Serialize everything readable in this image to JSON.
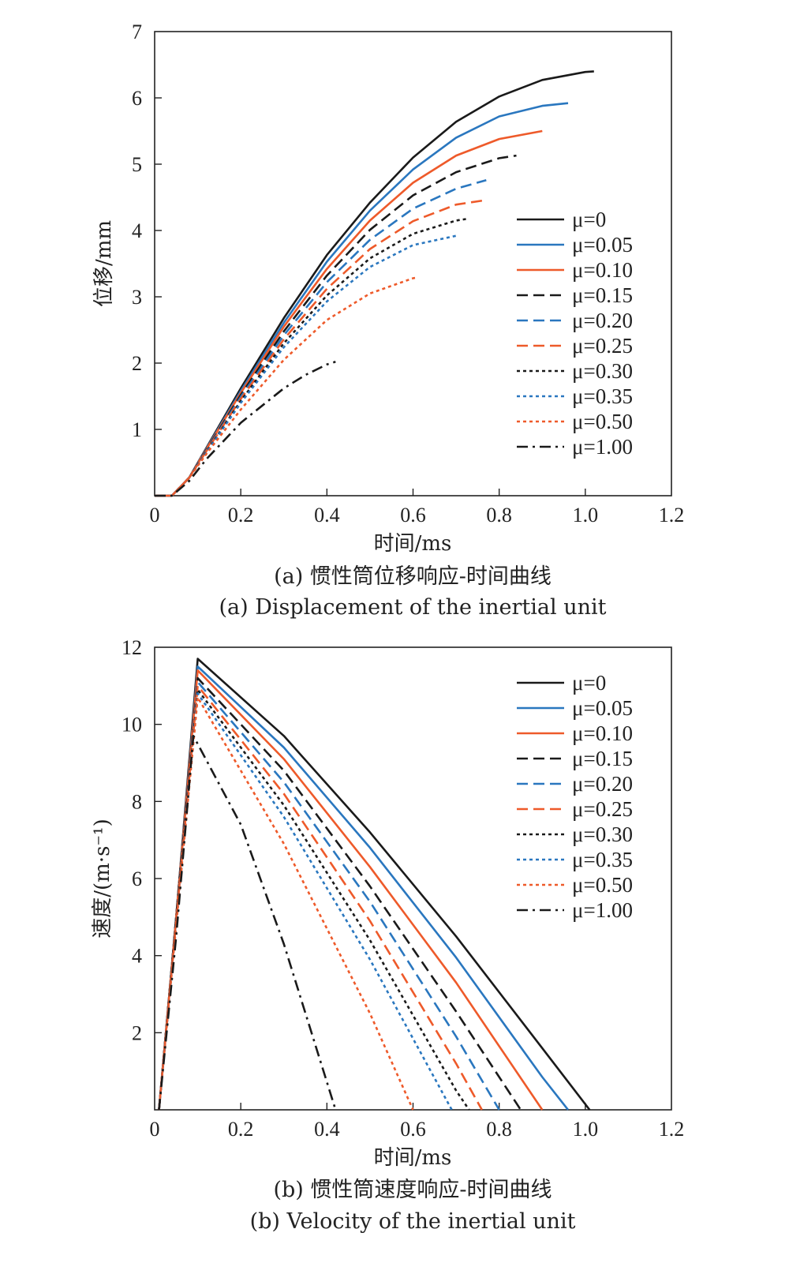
{
  "colors": {
    "black": "#1a1a1a",
    "blue": "#2a77bf",
    "orange": "#ee5a2a"
  },
  "chart_data": [
    {
      "type": "line",
      "title": "",
      "caption_cn": "(a) 惯性筒位移响应-时间曲线",
      "caption_en": "(a) Displacement of the inertial unit",
      "xlabel": "时间/ms",
      "ylabel": "位移/mm",
      "xlim": [
        0,
        1.2
      ],
      "ylim": [
        0,
        7
      ],
      "xticks": [
        "0",
        "0.2",
        "0.4",
        "0.6",
        "0.8",
        "1.0",
        "1.2"
      ],
      "yticks": [
        "1",
        "2",
        "3",
        "4",
        "5",
        "6",
        "7"
      ],
      "legend_position": "right",
      "series": [
        {
          "name": "μ=0",
          "color": "black",
          "dash": "solid",
          "points": [
            [
              0,
              0
            ],
            [
              0.04,
              0
            ],
            [
              0.08,
              0.27
            ],
            [
              0.12,
              0.72
            ],
            [
              0.2,
              1.62
            ],
            [
              0.3,
              2.68
            ],
            [
              0.4,
              3.63
            ],
            [
              0.5,
              4.42
            ],
            [
              0.6,
              5.1
            ],
            [
              0.7,
              5.64
            ],
            [
              0.8,
              6.02
            ],
            [
              0.9,
              6.27
            ],
            [
              1.0,
              6.39
            ],
            [
              1.02,
              6.4
            ]
          ]
        },
        {
          "name": "μ=0.05",
          "color": "blue",
          "dash": "solid",
          "points": [
            [
              0,
              0
            ],
            [
              0.04,
              0
            ],
            [
              0.08,
              0.27
            ],
            [
              0.12,
              0.71
            ],
            [
              0.2,
              1.58
            ],
            [
              0.3,
              2.61
            ],
            [
              0.4,
              3.53
            ],
            [
              0.5,
              4.3
            ],
            [
              0.6,
              4.92
            ],
            [
              0.7,
              5.4
            ],
            [
              0.8,
              5.72
            ],
            [
              0.9,
              5.88
            ],
            [
              0.96,
              5.92
            ]
          ]
        },
        {
          "name": "μ=0.10",
          "color": "orange",
          "dash": "solid",
          "points": [
            [
              0,
              0
            ],
            [
              0.04,
              0
            ],
            [
              0.08,
              0.27
            ],
            [
              0.12,
              0.7
            ],
            [
              0.2,
              1.55
            ],
            [
              0.3,
              2.55
            ],
            [
              0.4,
              3.42
            ],
            [
              0.5,
              4.15
            ],
            [
              0.6,
              4.72
            ],
            [
              0.7,
              5.13
            ],
            [
              0.8,
              5.38
            ],
            [
              0.9,
              5.5
            ]
          ]
        },
        {
          "name": "μ=0.15",
          "color": "black",
          "dash": "dash",
          "points": [
            [
              0,
              0
            ],
            [
              0.04,
              0
            ],
            [
              0.08,
              0.27
            ],
            [
              0.12,
              0.69
            ],
            [
              0.2,
              1.52
            ],
            [
              0.3,
              2.48
            ],
            [
              0.4,
              3.32
            ],
            [
              0.5,
              4.01
            ],
            [
              0.6,
              4.53
            ],
            [
              0.7,
              4.88
            ],
            [
              0.8,
              5.09
            ],
            [
              0.84,
              5.13
            ]
          ]
        },
        {
          "name": "μ=0.20",
          "color": "blue",
          "dash": "dash",
          "points": [
            [
              0,
              0
            ],
            [
              0.04,
              0
            ],
            [
              0.08,
              0.27
            ],
            [
              0.12,
              0.68
            ],
            [
              0.2,
              1.49
            ],
            [
              0.3,
              2.42
            ],
            [
              0.4,
              3.22
            ],
            [
              0.5,
              3.86
            ],
            [
              0.6,
              4.33
            ],
            [
              0.7,
              4.63
            ],
            [
              0.77,
              4.76
            ]
          ]
        },
        {
          "name": "μ=0.25",
          "color": "orange",
          "dash": "dash",
          "points": [
            [
              0,
              0
            ],
            [
              0.04,
              0
            ],
            [
              0.08,
              0.27
            ],
            [
              0.12,
              0.67
            ],
            [
              0.2,
              1.46
            ],
            [
              0.3,
              2.36
            ],
            [
              0.4,
              3.12
            ],
            [
              0.5,
              3.72
            ],
            [
              0.6,
              4.14
            ],
            [
              0.7,
              4.39
            ],
            [
              0.77,
              4.46
            ]
          ]
        },
        {
          "name": "μ=0.30",
          "color": "black",
          "dash": "dot",
          "points": [
            [
              0,
              0
            ],
            [
              0.04,
              0
            ],
            [
              0.08,
              0.27
            ],
            [
              0.12,
              0.66
            ],
            [
              0.2,
              1.43
            ],
            [
              0.3,
              2.3
            ],
            [
              0.4,
              3.02
            ],
            [
              0.5,
              3.58
            ],
            [
              0.6,
              3.95
            ],
            [
              0.7,
              4.15
            ],
            [
              0.73,
              4.18
            ]
          ]
        },
        {
          "name": "μ=0.35",
          "color": "blue",
          "dash": "dot",
          "points": [
            [
              0,
              0
            ],
            [
              0.04,
              0
            ],
            [
              0.08,
              0.27
            ],
            [
              0.12,
              0.65
            ],
            [
              0.2,
              1.4
            ],
            [
              0.3,
              2.24
            ],
            [
              0.4,
              2.93
            ],
            [
              0.5,
              3.45
            ],
            [
              0.6,
              3.78
            ],
            [
              0.7,
              3.92
            ]
          ]
        },
        {
          "name": "μ=0.50",
          "color": "orange",
          "dash": "dot",
          "points": [
            [
              0,
              0
            ],
            [
              0.04,
              0
            ],
            [
              0.08,
              0.27
            ],
            [
              0.12,
              0.63
            ],
            [
              0.2,
              1.3
            ],
            [
              0.3,
              2.05
            ],
            [
              0.4,
              2.65
            ],
            [
              0.5,
              3.05
            ],
            [
              0.6,
              3.28
            ],
            [
              0.61,
              3.29
            ]
          ]
        },
        {
          "name": "μ=1.00",
          "color": "black",
          "dash": "dashdot",
          "points": [
            [
              0,
              0
            ],
            [
              0.04,
              0
            ],
            [
              0.08,
              0.22
            ],
            [
              0.12,
              0.55
            ],
            [
              0.2,
              1.1
            ],
            [
              0.3,
              1.62
            ],
            [
              0.35,
              1.82
            ],
            [
              0.4,
              1.98
            ],
            [
              0.42,
              2.02
            ]
          ]
        }
      ]
    },
    {
      "type": "line",
      "title": "",
      "caption_cn": "(b) 惯性筒速度响应-时间曲线",
      "caption_en": "(b) Velocity of the inertial unit",
      "xlabel": "时间/ms",
      "ylabel": "速度/(m·s⁻¹)",
      "xlim": [
        0,
        1.2
      ],
      "ylim": [
        0,
        12
      ],
      "xticks": [
        "0",
        "0.2",
        "0.4",
        "0.6",
        "0.8",
        "1.0",
        "1.2"
      ],
      "yticks": [
        "2",
        "4",
        "6",
        "8",
        "10",
        "12"
      ],
      "legend_position": "top-right",
      "series": [
        {
          "name": "μ=0",
          "color": "black",
          "dash": "solid",
          "points": [
            [
              0.01,
              0
            ],
            [
              0.05,
              5.0
            ],
            [
              0.1,
              11.7
            ],
            [
              0.3,
              9.7
            ],
            [
              0.5,
              7.2
            ],
            [
              0.7,
              4.5
            ],
            [
              0.9,
              1.6
            ],
            [
              1.01,
              0
            ]
          ]
        },
        {
          "name": "μ=0.05",
          "color": "blue",
          "dash": "solid",
          "points": [
            [
              0.01,
              0
            ],
            [
              0.05,
              5.0
            ],
            [
              0.1,
              11.5
            ],
            [
              0.3,
              9.4
            ],
            [
              0.5,
              6.8
            ],
            [
              0.7,
              3.95
            ],
            [
              0.9,
              0.85
            ],
            [
              0.96,
              0
            ]
          ]
        },
        {
          "name": "μ=0.10",
          "color": "orange",
          "dash": "solid",
          "points": [
            [
              0.01,
              0
            ],
            [
              0.05,
              5.0
            ],
            [
              0.1,
              11.4
            ],
            [
              0.3,
              9.1
            ],
            [
              0.5,
              6.3
            ],
            [
              0.7,
              3.3
            ],
            [
              0.9,
              0
            ]
          ]
        },
        {
          "name": "μ=0.15",
          "color": "black",
          "dash": "dash",
          "points": [
            [
              0.01,
              0
            ],
            [
              0.05,
              5.0
            ],
            [
              0.1,
              11.2
            ],
            [
              0.3,
              8.8
            ],
            [
              0.5,
              5.8
            ],
            [
              0.7,
              2.55
            ],
            [
              0.85,
              0
            ]
          ]
        },
        {
          "name": "μ=0.20",
          "color": "blue",
          "dash": "dash",
          "points": [
            [
              0.01,
              0
            ],
            [
              0.05,
              4.9
            ],
            [
              0.1,
              11.1
            ],
            [
              0.3,
              8.5
            ],
            [
              0.5,
              5.4
            ],
            [
              0.7,
              1.9
            ],
            [
              0.8,
              0
            ]
          ]
        },
        {
          "name": "μ=0.25",
          "color": "orange",
          "dash": "dash",
          "points": [
            [
              0.01,
              0
            ],
            [
              0.05,
              4.9
            ],
            [
              0.1,
              11.0
            ],
            [
              0.3,
              8.2
            ],
            [
              0.5,
              4.9
            ],
            [
              0.7,
              1.2
            ],
            [
              0.76,
              0
            ]
          ]
        },
        {
          "name": "μ=0.30",
          "color": "black",
          "dash": "dot",
          "points": [
            [
              0.01,
              0
            ],
            [
              0.05,
              4.9
            ],
            [
              0.1,
              10.9
            ],
            [
              0.3,
              7.9
            ],
            [
              0.5,
              4.4
            ],
            [
              0.7,
              0.5
            ],
            [
              0.73,
              0
            ]
          ]
        },
        {
          "name": "μ=0.35",
          "color": "blue",
          "dash": "dot",
          "points": [
            [
              0.01,
              0
            ],
            [
              0.05,
              4.8
            ],
            [
              0.1,
              10.8
            ],
            [
              0.3,
              7.6
            ],
            [
              0.5,
              3.9
            ],
            [
              0.69,
              0
            ]
          ]
        },
        {
          "name": "μ=0.50",
          "color": "orange",
          "dash": "dot",
          "points": [
            [
              0.01,
              0
            ],
            [
              0.05,
              4.8
            ],
            [
              0.1,
              10.7
            ],
            [
              0.3,
              6.9
            ],
            [
              0.5,
              2.5
            ],
            [
              0.6,
              0
            ]
          ]
        },
        {
          "name": "μ=1.00",
          "color": "black",
          "dash": "dashdot",
          "points": [
            [
              0.01,
              0
            ],
            [
              0.05,
              4.5
            ],
            [
              0.09,
              9.7
            ],
            [
              0.2,
              7.4
            ],
            [
              0.3,
              4.3
            ],
            [
              0.42,
              0
            ]
          ]
        }
      ]
    }
  ]
}
